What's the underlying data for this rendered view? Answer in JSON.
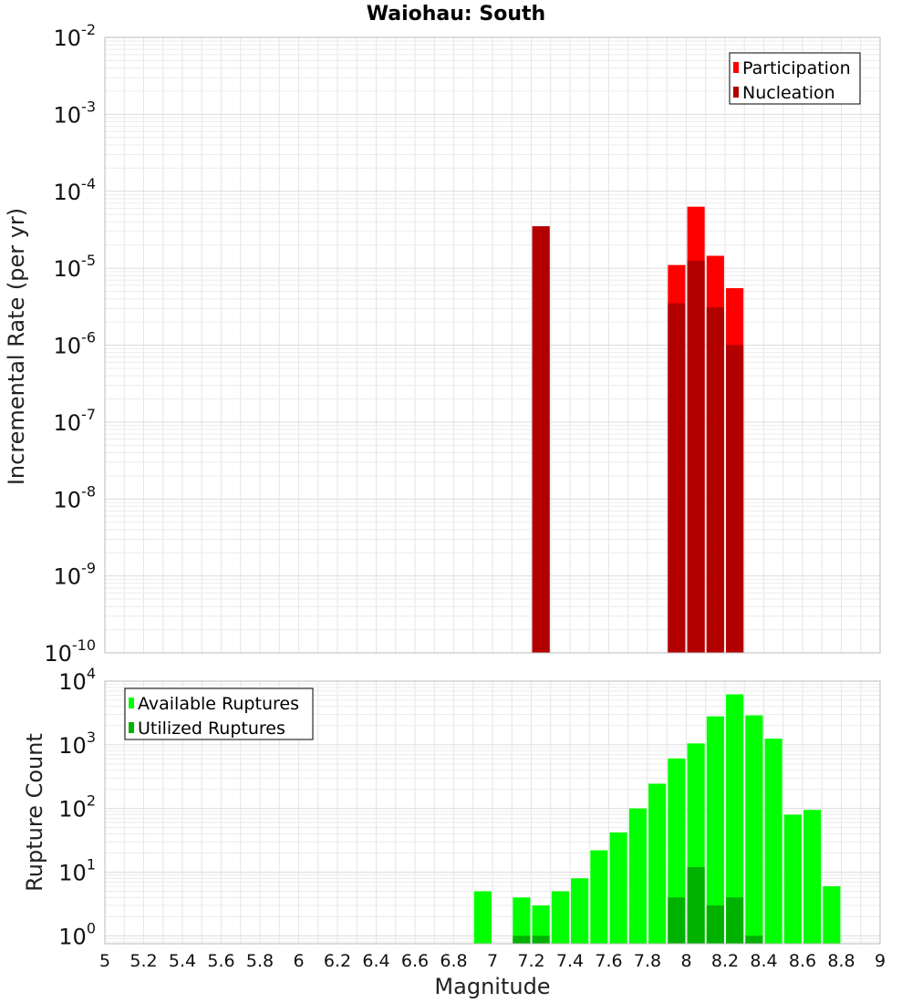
{
  "title": "Waiohau: South",
  "colors": {
    "participation": "#ff0000",
    "nucleation": "#b20000",
    "available": "#00ff00",
    "utilized": "#00b200",
    "grid": "#e6e6e6",
    "frame": "#bbbbbb"
  },
  "chart_data": [
    {
      "type": "bar",
      "panel": "top",
      "xlabel": "",
      "ylabel": "Incremental Rate (per yr)",
      "xlim": [
        5,
        9
      ],
      "ylim": [
        1e-10,
        0.01
      ],
      "yscale": "log",
      "bar_width": 0.09,
      "legend": {
        "placement": "top-right",
        "entries": [
          "Participation",
          "Nucleation"
        ]
      },
      "series": [
        {
          "name": "Participation",
          "x": [
            7.25,
            7.95,
            8.05,
            8.15,
            8.25
          ],
          "values": [
            3.5e-05,
            1.1e-05,
            6.3e-05,
            1.45e-05,
            5.5e-06
          ]
        },
        {
          "name": "Nucleation",
          "x": [
            7.25,
            7.95,
            8.05,
            8.15,
            8.25
          ],
          "values": [
            3.5e-05,
            3.5e-06,
            1.25e-05,
            3.1e-06,
            1e-06
          ]
        }
      ],
      "y_ticks": [
        {
          "base": "10",
          "exp": "-2",
          "value": 0.01
        },
        {
          "base": "10",
          "exp": "-3",
          "value": 0.001
        },
        {
          "base": "10",
          "exp": "-4",
          "value": 0.0001
        },
        {
          "base": "10",
          "exp": "-5",
          "value": 1e-05
        },
        {
          "base": "10",
          "exp": "-6",
          "value": 1e-06
        },
        {
          "base": "10",
          "exp": "-7",
          "value": 1e-07
        },
        {
          "base": "10",
          "exp": "-8",
          "value": 1e-08
        },
        {
          "base": "10",
          "exp": "-9",
          "value": 1e-09
        },
        {
          "base": "10",
          "exp": "-10",
          "value": 1e-10
        }
      ],
      "grid": true
    },
    {
      "type": "bar",
      "panel": "bottom",
      "xlabel": "Magnitude",
      "ylabel": "Rupture Count",
      "xlim": [
        5,
        9
      ],
      "ylim": [
        0.75,
        10000
      ],
      "yscale": "log",
      "bar_width": 0.09,
      "legend": {
        "placement": "top-left",
        "entries": [
          "Available Ruptures",
          "Utilized Ruptures"
        ]
      },
      "series": [
        {
          "name": "Available Ruptures",
          "x": [
            6.95,
            7.15,
            7.25,
            7.35,
            7.45,
            7.55,
            7.65,
            7.75,
            7.85,
            7.95,
            8.05,
            8.15,
            8.25,
            8.35,
            8.45,
            8.55,
            8.65,
            8.75
          ],
          "values": [
            5,
            4,
            3,
            5,
            8,
            22,
            42,
            100,
            245,
            610,
            1050,
            2800,
            6200,
            2900,
            1250,
            80,
            95,
            6
          ]
        },
        {
          "name": "Utilized Ruptures",
          "x": [
            7.15,
            7.25,
            7.95,
            8.05,
            8.15,
            8.25,
            8.35
          ],
          "values": [
            1,
            1,
            4,
            12,
            3,
            4,
            1
          ]
        }
      ],
      "y_ticks": [
        {
          "base": "10",
          "exp": "0",
          "value": 1
        },
        {
          "base": "10",
          "exp": "1",
          "value": 10
        },
        {
          "base": "10",
          "exp": "2",
          "value": 100
        },
        {
          "base": "10",
          "exp": "3",
          "value": 1000
        },
        {
          "base": "10",
          "exp": "4",
          "value": 10000
        }
      ],
      "x_ticks": [
        "5",
        "5.2",
        "5.4",
        "5.6",
        "5.8",
        "6",
        "6.2",
        "6.4",
        "6.6",
        "6.8",
        "7",
        "7.2",
        "7.4",
        "7.6",
        "7.8",
        "8",
        "8.2",
        "8.4",
        "8.6",
        "8.8",
        "9"
      ],
      "grid": true
    }
  ]
}
